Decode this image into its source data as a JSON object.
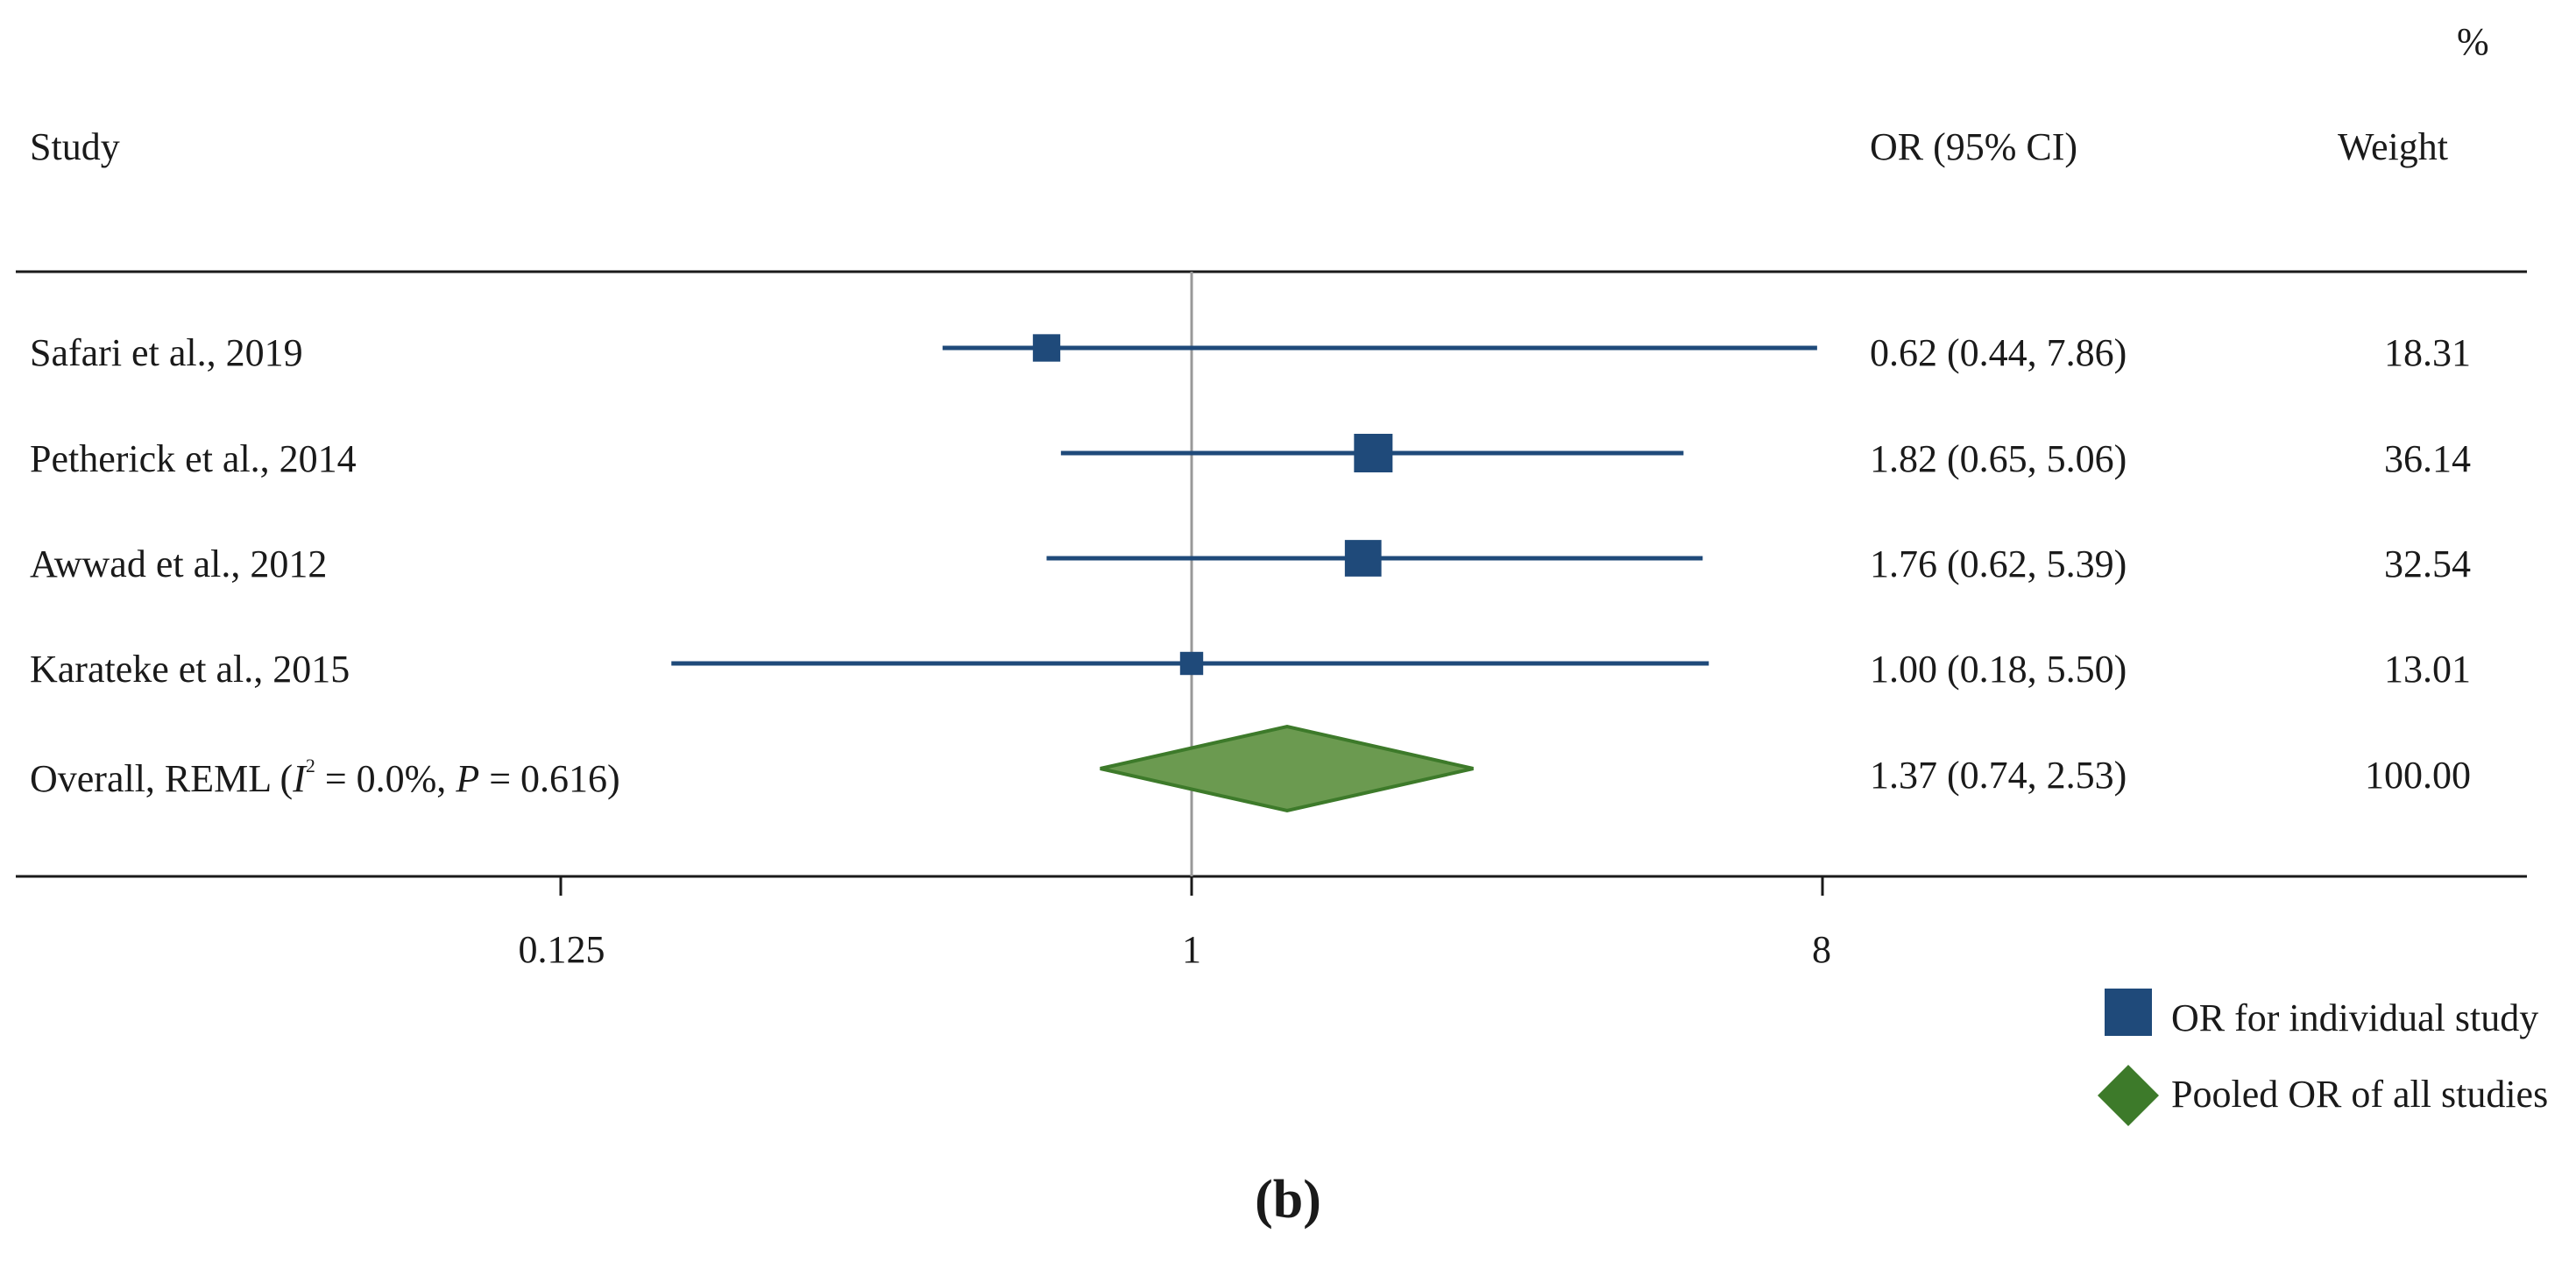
{
  "chart_data": {
    "type": "forest",
    "headers": {
      "study": "Study",
      "effect": "OR (95% CI)",
      "weight_line1": "%",
      "weight_line2": "Weight"
    },
    "scale": "log2",
    "ticks": [
      0.125,
      1,
      8
    ],
    "tick_labels": [
      "0.125",
      "1",
      "8"
    ],
    "xlim": [
      0.03,
      64
    ],
    "reference_line": 1,
    "studies": [
      {
        "label": "Safari et al., 2019",
        "or": 0.62,
        "lo": 0.44,
        "hi": 7.86,
        "weight": 18.31,
        "ci_text": "0.62 (0.44, 7.86)",
        "weight_text": "18.31"
      },
      {
        "label": "Petherick et al., 2014",
        "or": 1.82,
        "lo": 0.65,
        "hi": 5.06,
        "weight": 36.14,
        "ci_text": "1.82 (0.65, 5.06)",
        "weight_text": "36.14"
      },
      {
        "label": "Awwad et al., 2012",
        "or": 1.76,
        "lo": 0.62,
        "hi": 5.39,
        "weight": 32.54,
        "ci_text": "1.76 (0.62, 5.39)",
        "weight_text": "32.54"
      },
      {
        "label": "Karateke et al., 2015",
        "or": 1.0,
        "lo": 0.18,
        "hi": 5.5,
        "weight": 13.01,
        "ci_text": "1.00 (0.18, 5.50)",
        "weight_text": "13.01"
      }
    ],
    "overall": {
      "label_prefix": "Overall, REML (",
      "label_i": "I",
      "label_sup": "2",
      "label_mid": " = 0.0%, ",
      "label_p": "P",
      "label_end": " = 0.616)",
      "or": 1.37,
      "lo": 0.74,
      "hi": 2.53,
      "weight": 100.0,
      "ci_text": "1.37 (0.74, 2.53)",
      "weight_text": "100.00"
    },
    "legend": [
      {
        "label": "OR for individual study",
        "marker": "square"
      },
      {
        "label": "Pooled OR of all studies",
        "marker": "diamond"
      }
    ],
    "colors": {
      "study": "#1f4a7a",
      "pooled_fill": "#6b9a50",
      "pooled_stroke": "#3d7a2a",
      "reference": "#999999",
      "axis": "#1a1a1a"
    }
  },
  "figure_label": "(b)"
}
